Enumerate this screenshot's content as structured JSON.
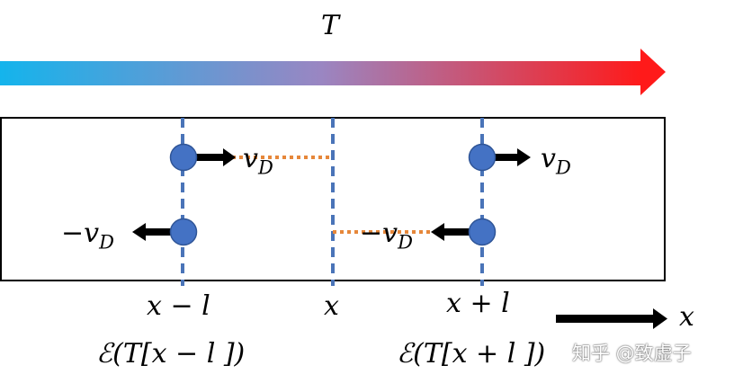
{
  "temperature_label": "T",
  "x_axis_label": "x",
  "positions": {
    "left": "x − l",
    "center": "x",
    "right": "x + l"
  },
  "energy_labels": {
    "left": "ℰ(T[x − l ])",
    "right": "ℰ(T[x + l ])"
  },
  "velocity": {
    "symbol": "v",
    "subscript": "D",
    "negative_prefix": "−"
  },
  "colors": {
    "gradient_start": "#14b4ec",
    "gradient_mid": "#9a86c2",
    "gradient_end": "#ff1a1a",
    "dashed_line": "#4a74b8",
    "particle_fill": "#4472c4",
    "path_dotted": "#e6873a"
  },
  "watermark": "知乎 @致虚子"
}
